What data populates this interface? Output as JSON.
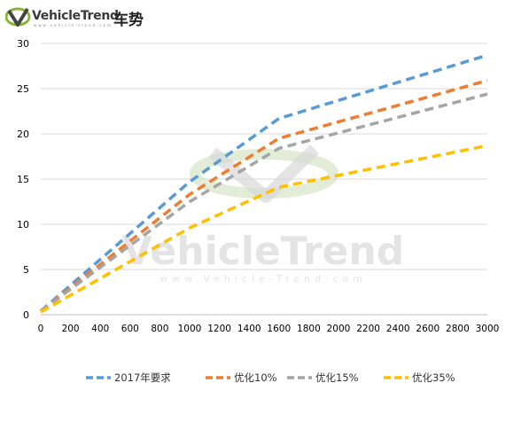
{
  "header": {
    "brand": "VehicleTrend",
    "brand_cn": "车势",
    "tagline": "www.vehicle-trend.com"
  },
  "watermark": {
    "brand": "VehicleTrend",
    "url": "www.Vehicle-Trend.com"
  },
  "colors": {
    "series": [
      "#5B9BD5",
      "#ED7D31",
      "#A5A5A5",
      "#FFC000"
    ],
    "grid": "#d9d9d9",
    "axis_text": "#000000",
    "logo_green": "#8BB53A"
  },
  "chart_data": {
    "type": "line",
    "title": "",
    "xlabel": "",
    "ylabel": "",
    "x_ticks": [
      0,
      200,
      400,
      600,
      800,
      1000,
      1200,
      1400,
      1600,
      1800,
      2000,
      2200,
      2400,
      2600,
      2800,
      3000
    ],
    "y_ticks": [
      0,
      5,
      10,
      15,
      20,
      25,
      30
    ],
    "xlim": [
      0,
      3000
    ],
    "ylim": [
      0,
      30
    ],
    "grid": "horizontal",
    "legend_position": "bottom",
    "line_style": "dashed",
    "series": [
      {
        "name": "2017年要求",
        "x": [
          0,
          1000,
          1600,
          3000
        ],
        "y": [
          0.4,
          14.7,
          21.7,
          28.7
        ]
      },
      {
        "name": "优化10%",
        "x": [
          0,
          1000,
          1600,
          3000
        ],
        "y": [
          0.4,
          13.3,
          19.5,
          25.9
        ]
      },
      {
        "name": "优化15%",
        "x": [
          0,
          1000,
          1600,
          3000
        ],
        "y": [
          0.4,
          12.5,
          18.4,
          24.4
        ]
      },
      {
        "name": "优化35%",
        "x": [
          0,
          1000,
          1600,
          3000
        ],
        "y": [
          0.3,
          9.6,
          14.1,
          18.7
        ]
      }
    ]
  }
}
